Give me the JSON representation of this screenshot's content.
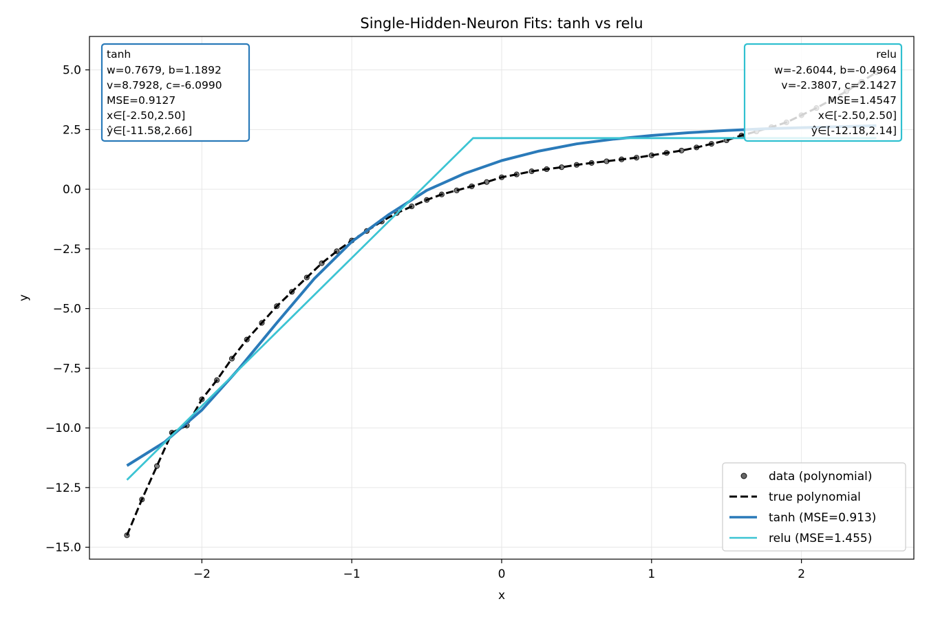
{
  "chart_data": {
    "type": "line",
    "title": "Single-Hidden-Neuron Fits: tanh vs relu",
    "xlabel": "x",
    "ylabel": "y",
    "xlim": [
      -2.75,
      2.75
    ],
    "ylim": [
      -15.5,
      6.4
    ],
    "xticks": [
      -2,
      -1,
      0,
      1,
      2
    ],
    "xtick_labels": [
      "−2",
      "−1",
      "0",
      "1",
      "2"
    ],
    "yticks": [
      5.0,
      2.5,
      0.0,
      -2.5,
      -5.0,
      -7.5,
      -10.0,
      -12.5,
      -15.0
    ],
    "ytick_labels": [
      "5.0",
      "2.5",
      "0.0",
      "−2.5",
      "−5.0",
      "−7.5",
      "−10.0",
      "−12.5",
      "−15.0"
    ],
    "grid": true,
    "legend_position": "lower-right",
    "legend": [
      {
        "label": "data (polynomial)",
        "style": "scatter",
        "color": "#555555"
      },
      {
        "label": "true polynomial",
        "style": "dashed",
        "color": "#000000"
      },
      {
        "label": "tanh (MSE=0.913)",
        "style": "line",
        "color": "#2a7ab9"
      },
      {
        "label": "relu (MSE=1.455)",
        "style": "line",
        "color": "#3cc4d3"
      }
    ],
    "series": [
      {
        "name": "data (polynomial)",
        "kind": "scatter",
        "x": [
          -2.5,
          -2.4,
          -2.3,
          -2.2,
          -2.1,
          -2.0,
          -1.9,
          -1.8,
          -1.7,
          -1.6,
          -1.5,
          -1.4,
          -1.3,
          -1.2,
          -1.1,
          -1.0,
          -0.9,
          -0.8,
          -0.7,
          -0.6,
          -0.5,
          -0.4,
          -0.3,
          -0.2,
          -0.1,
          0.0,
          0.1,
          0.2,
          0.3,
          0.4,
          0.5,
          0.6,
          0.7,
          0.8,
          0.9,
          1.0,
          1.1,
          1.2,
          1.3,
          1.4,
          1.5,
          1.6,
          1.7,
          1.8,
          1.9,
          2.0,
          2.1,
          2.2,
          2.3,
          2.4,
          2.5
        ],
        "y": [
          -14.5,
          -13.0,
          -11.6,
          -10.2,
          -9.9,
          -8.8,
          -8.0,
          -7.1,
          -6.3,
          -5.6,
          -4.9,
          -4.3,
          -3.7,
          -3.1,
          -2.6,
          -2.15,
          -1.75,
          -1.35,
          -1.0,
          -0.72,
          -0.45,
          -0.22,
          -0.05,
          0.12,
          0.3,
          0.5,
          0.62,
          0.75,
          0.84,
          0.92,
          1.02,
          1.1,
          1.17,
          1.25,
          1.32,
          1.42,
          1.52,
          1.62,
          1.75,
          1.9,
          2.05,
          2.25,
          2.42,
          2.6,
          2.8,
          3.1,
          3.4,
          3.75,
          4.1,
          4.5,
          4.9
        ]
      },
      {
        "name": "true polynomial",
        "kind": "line",
        "style": "dashed",
        "x": [
          -2.5,
          -2.4,
          -2.3,
          -2.2,
          -2.1,
          -2.0,
          -1.9,
          -1.8,
          -1.7,
          -1.6,
          -1.5,
          -1.4,
          -1.3,
          -1.2,
          -1.1,
          -1.0,
          -0.9,
          -0.8,
          -0.7,
          -0.6,
          -0.5,
          -0.4,
          -0.3,
          -0.2,
          -0.1,
          0.0,
          0.1,
          0.2,
          0.3,
          0.4,
          0.5,
          0.6,
          0.7,
          0.8,
          0.9,
          1.0,
          1.1,
          1.2,
          1.3,
          1.4,
          1.5,
          1.6,
          1.7,
          1.8,
          1.9,
          2.0,
          2.1,
          2.2,
          2.3,
          2.4,
          2.5
        ],
        "y": [
          -14.5,
          -13.0,
          -11.6,
          -10.2,
          -9.9,
          -8.8,
          -8.0,
          -7.1,
          -6.3,
          -5.6,
          -4.9,
          -4.3,
          -3.7,
          -3.1,
          -2.6,
          -2.15,
          -1.75,
          -1.35,
          -1.0,
          -0.72,
          -0.45,
          -0.22,
          -0.05,
          0.12,
          0.3,
          0.5,
          0.62,
          0.75,
          0.84,
          0.92,
          1.02,
          1.1,
          1.17,
          1.25,
          1.32,
          1.42,
          1.52,
          1.62,
          1.75,
          1.9,
          2.05,
          2.25,
          2.42,
          2.6,
          2.8,
          3.1,
          3.4,
          3.75,
          4.1,
          4.5,
          4.9
        ]
      },
      {
        "name": "tanh (MSE=0.913)",
        "kind": "line",
        "x": [
          -2.5,
          -2.25,
          -2.0,
          -1.75,
          -1.5,
          -1.25,
          -1.0,
          -0.75,
          -0.5,
          -0.25,
          0.0,
          0.25,
          0.5,
          0.75,
          1.0,
          1.25,
          1.5,
          1.75,
          2.0,
          2.25,
          2.5
        ],
        "y": [
          -11.58,
          -10.6,
          -9.25,
          -7.5,
          -5.6,
          -3.75,
          -2.2,
          -1.05,
          -0.05,
          0.65,
          1.2,
          1.6,
          1.9,
          2.1,
          2.25,
          2.37,
          2.46,
          2.53,
          2.58,
          2.62,
          2.66
        ]
      },
      {
        "name": "relu (MSE=1.455)",
        "kind": "line",
        "x": [
          -2.5,
          -0.1906,
          2.5
        ],
        "y": [
          -12.18,
          2.14,
          2.14
        ]
      }
    ]
  },
  "annotations": {
    "tanh": {
      "color": "#2a7ab9",
      "lines": [
        "tanh",
        "w=0.7679, b=1.1892",
        "v=8.7928, c=-6.0990",
        "MSE=0.9127",
        "x∈[-2.50,2.50]",
        "ŷ∈[-11.58,2.66]"
      ]
    },
    "relu": {
      "color": "#2fc0d0",
      "lines": [
        "relu",
        "w=-2.6044, b=-0.4964",
        "v=-2.3807, c=2.1427",
        "MSE=1.4547",
        "x∈[-2.50,2.50]",
        "ŷ∈[-12.18,2.14]"
      ]
    }
  }
}
